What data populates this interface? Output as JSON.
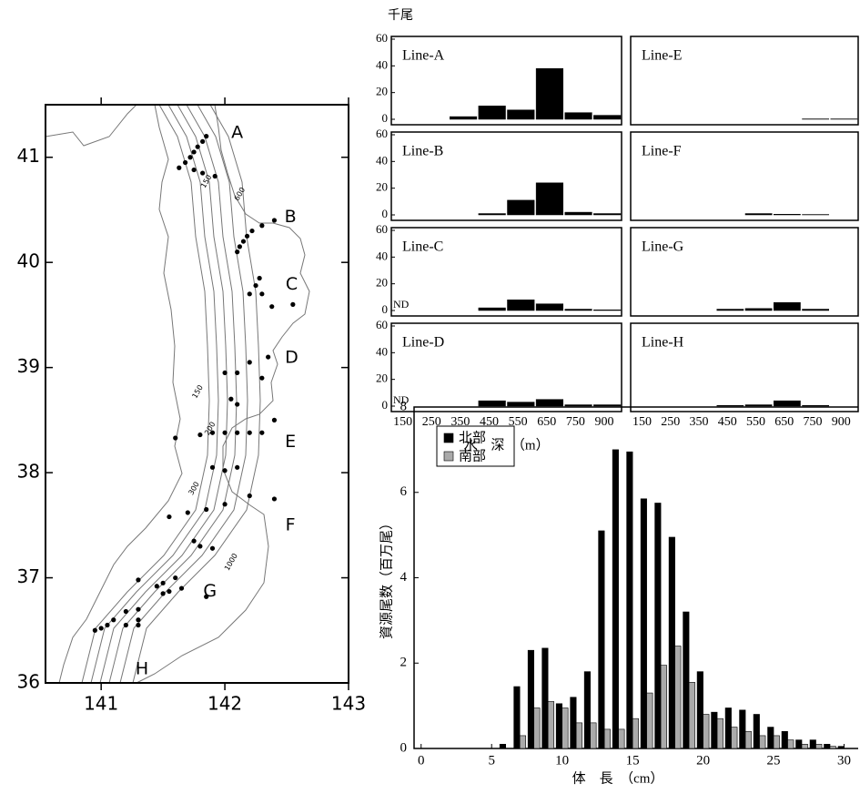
{
  "chart_data": [
    {
      "type": "scatter",
      "xlim": [
        140.55,
        143
      ],
      "ylim": [
        36,
        41.5
      ],
      "xticks": [
        141,
        142,
        143
      ],
      "yticks": [
        36,
        37,
        38,
        39,
        40,
        41
      ],
      "x": [
        141.85,
        141.82,
        141.78,
        141.75,
        141.72,
        141.68,
        141.63,
        141.75,
        141.82,
        141.92,
        142.4,
        142.3,
        142.22,
        142.18,
        142.15,
        142.12,
        142.1,
        142.55,
        142.38,
        142.3,
        142.25,
        142.28,
        142.2,
        142.35,
        142.2,
        142.1,
        142.0,
        142.05,
        142.1,
        142.3,
        142.4,
        142.3,
        142.2,
        142.1,
        142.0,
        141.9,
        141.8,
        141.6,
        142.1,
        142.0,
        141.9,
        142.4,
        142.2,
        142.0,
        141.85,
        141.7,
        141.55,
        141.75,
        141.8,
        141.9,
        141.6,
        141.5,
        141.45,
        141.5,
        141.55,
        141.65,
        141.85,
        141.3,
        141.3,
        141.2,
        141.1,
        141.05,
        141.0,
        140.95,
        141.2,
        141.3,
        141.3
      ],
      "values": [
        41.2,
        41.15,
        41.1,
        41.05,
        41.0,
        40.95,
        40.9,
        40.88,
        40.85,
        40.82,
        40.4,
        40.35,
        40.3,
        40.25,
        40.2,
        40.15,
        40.1,
        39.6,
        39.58,
        39.7,
        39.78,
        39.85,
        39.7,
        39.1,
        39.05,
        38.95,
        38.95,
        38.7,
        38.65,
        38.9,
        38.5,
        38.38,
        38.38,
        38.38,
        38.38,
        38.38,
        38.36,
        38.33,
        38.05,
        38.02,
        38.05,
        37.75,
        37.78,
        37.7,
        37.65,
        37.62,
        37.58,
        37.35,
        37.3,
        37.28,
        37.0,
        36.95,
        36.92,
        36.85,
        36.87,
        36.9,
        36.82,
        36.98,
        36.7,
        36.68,
        36.6,
        36.55,
        36.52,
        36.5,
        36.55,
        36.55,
        36.6
      ],
      "labels": [
        {
          "text": "A",
          "x": 142.1,
          "y": 41.23
        },
        {
          "text": "B",
          "x": 142.53,
          "y": 40.43
        },
        {
          "text": "C",
          "x": 142.54,
          "y": 39.79
        },
        {
          "text": "D",
          "x": 142.54,
          "y": 39.09
        },
        {
          "text": "E",
          "x": 142.53,
          "y": 38.29
        },
        {
          "text": "F",
          "x": 142.53,
          "y": 37.5
        },
        {
          "text": "G",
          "x": 141.88,
          "y": 36.87
        },
        {
          "text": "H",
          "x": 141.33,
          "y": 36.13
        }
      ],
      "contour_labels": [
        {
          "text": "150",
          "x": 141.85,
          "y": 40.77
        },
        {
          "text": "600",
          "x": 142.12,
          "y": 40.65
        },
        {
          "text": "150",
          "x": 141.78,
          "y": 38.77
        },
        {
          "text": "200",
          "x": 141.88,
          "y": 38.42
        },
        {
          "text": "300",
          "x": 141.75,
          "y": 37.85
        },
        {
          "text": "1000",
          "x": 142.05,
          "y": 37.15
        }
      ]
    },
    {
      "type": "bar",
      "title": "Line-A",
      "y_unit": "千尾",
      "values": [
        0,
        0,
        2,
        10,
        7,
        38,
        5,
        3
      ],
      "ylim": [
        0,
        60
      ],
      "yticks": [
        0,
        20,
        40,
        60
      ]
    },
    {
      "type": "bar",
      "title": "Line-B",
      "values": [
        0,
        0,
        0,
        1,
        11,
        24,
        2,
        1
      ],
      "ylim": [
        0,
        60
      ],
      "yticks": [
        0,
        20,
        40,
        60
      ]
    },
    {
      "type": "bar",
      "title": "Line-C",
      "annotation": "ND",
      "values": [
        0,
        0,
        0,
        2,
        8,
        5,
        1,
        0.5
      ],
      "ylim": [
        0,
        60
      ],
      "yticks": [
        0,
        20,
        40,
        60
      ]
    },
    {
      "type": "bar",
      "title": "Line-D",
      "annotation": "ND",
      "values": [
        0,
        0,
        0,
        4,
        3,
        5,
        1,
        1
      ],
      "ylim": [
        0,
        60
      ],
      "yticks": [
        0,
        20,
        40,
        60
      ],
      "categories": [
        "150",
        "250",
        "350",
        "450",
        "550",
        "650",
        "750",
        "900"
      ],
      "x_label": "水　深　（m）"
    },
    {
      "type": "bar",
      "title": "Line-E",
      "values": [
        0,
        0,
        0,
        0,
        0,
        0,
        0.3,
        0.3
      ],
      "ylim": [
        0,
        60
      ]
    },
    {
      "type": "bar",
      "title": "Line-F",
      "values": [
        0,
        0,
        0,
        0,
        1,
        0.5,
        0.3,
        0
      ],
      "ylim": [
        0,
        60
      ]
    },
    {
      "type": "bar",
      "title": "Line-G",
      "values": [
        0,
        0,
        0,
        1,
        1.5,
        6,
        1,
        0
      ],
      "ylim": [
        0,
        60
      ]
    },
    {
      "type": "bar",
      "title": "Line-H",
      "values": [
        0,
        0,
        0,
        0.5,
        1,
        4,
        0.5,
        0
      ],
      "ylim": [
        0,
        60
      ],
      "categories": [
        "150",
        "250",
        "350",
        "450",
        "550",
        "650",
        "750",
        "900"
      ]
    },
    {
      "type": "grouped_bar",
      "x_label": "体　長　（cm）",
      "y_label": "資源尾数（百万尾）",
      "x": [
        0,
        1,
        2,
        3,
        4,
        5,
        6,
        7,
        8,
        9,
        10,
        11,
        12,
        13,
        14,
        15,
        16,
        17,
        18,
        19,
        20,
        21,
        22,
        23,
        24,
        25,
        26,
        27,
        28,
        29,
        30
      ],
      "xlim": [
        -0.5,
        31
      ],
      "xticks": [
        0,
        5,
        10,
        15,
        20,
        25,
        30
      ],
      "ylim": [
        0,
        8
      ],
      "yticks": [
        0,
        2,
        4,
        6,
        8
      ],
      "series": [
        {
          "name": "北部",
          "color": "#000000",
          "values": [
            0,
            0,
            0,
            0,
            0,
            0,
            0.1,
            1.45,
            2.3,
            2.35,
            1.05,
            1.2,
            1.8,
            5.1,
            7.0,
            6.95,
            5.85,
            5.75,
            4.95,
            3.2,
            1.8,
            0.85,
            0.95,
            0.9,
            0.8,
            0.5,
            0.4,
            0.2,
            0.2,
            0.1,
            0.05
          ]
        },
        {
          "name": "南部",
          "color": "#aaaaaa",
          "values": [
            0,
            0,
            0,
            0,
            0,
            0,
            0,
            0.3,
            0.95,
            1.1,
            0.95,
            0.6,
            0.6,
            0.45,
            0.45,
            0.7,
            1.3,
            1.95,
            2.4,
            1.55,
            0.8,
            0.7,
            0.5,
            0.4,
            0.3,
            0.3,
            0.2,
            0.1,
            0.1,
            0.05,
            0
          ]
        }
      ]
    }
  ]
}
